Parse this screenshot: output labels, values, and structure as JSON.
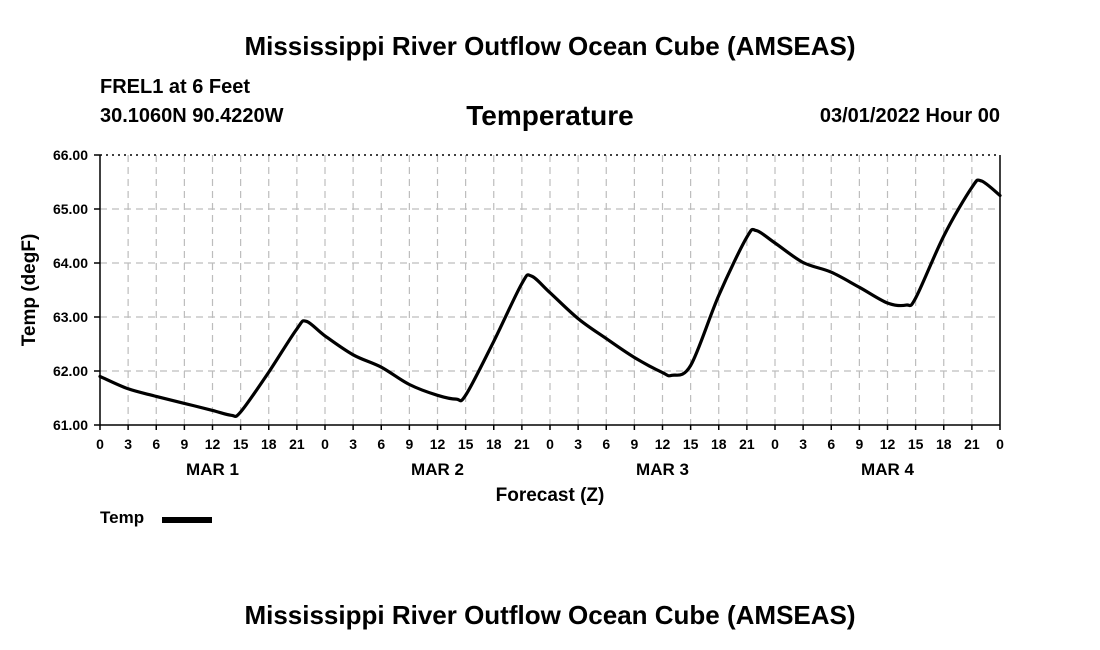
{
  "header": {
    "main_title": "Mississippi River Outflow Ocean Cube (AMSEAS)",
    "station": "FREL1 at 6 Feet",
    "coords": "30.1060N  90.4220W",
    "plot_title": "Temperature",
    "datetime": "03/01/2022 Hour 00"
  },
  "footer": {
    "title": "Mississippi River Outflow Ocean Cube (AMSEAS)"
  },
  "legend": {
    "label": "Temp",
    "color": "#000000"
  },
  "chart_data": {
    "type": "line",
    "title": "Temperature",
    "xlabel": "Forecast (Z)",
    "ylabel": "Temp (degF)",
    "ylim": [
      61,
      66
    ],
    "xlim": [
      0,
      96
    ],
    "x_ticks": [
      0,
      3,
      6,
      9,
      12,
      15,
      18,
      21,
      24,
      27,
      30,
      33,
      36,
      39,
      42,
      45,
      48,
      51,
      54,
      57,
      60,
      63,
      66,
      69,
      72,
      75,
      78,
      81,
      84,
      87,
      90,
      93,
      96
    ],
    "x_tick_labels": [
      "0",
      "3",
      "6",
      "9",
      "12",
      "15",
      "18",
      "21",
      "0",
      "3",
      "6",
      "9",
      "12",
      "15",
      "18",
      "21",
      "0",
      "3",
      "6",
      "9",
      "12",
      "15",
      "18",
      "21",
      "0",
      "3",
      "6",
      "9",
      "12",
      "15",
      "18",
      "21",
      "0"
    ],
    "y_ticks": [
      61,
      62,
      63,
      64,
      65,
      66
    ],
    "y_tick_labels": [
      "61.00",
      "62.00",
      "63.00",
      "64.00",
      "65.00",
      "66.00"
    ],
    "day_labels": [
      {
        "label": "MAR 1",
        "x": 12
      },
      {
        "label": "MAR 2",
        "x": 36
      },
      {
        "label": "MAR 3",
        "x": 60
      },
      {
        "label": "MAR 4",
        "x": 84
      }
    ],
    "grid": true,
    "series": [
      {
        "name": "Temp",
        "color": "#000000",
        "x": [
          0,
          3,
          6,
          9,
          12,
          14,
          15,
          18,
          21,
          22,
          24,
          27,
          30,
          33,
          36,
          38,
          39,
          42,
          45,
          46,
          48,
          51,
          54,
          57,
          60,
          61,
          63,
          66,
          69,
          70,
          72,
          75,
          78,
          81,
          84,
          86,
          87,
          90,
          93,
          94,
          96
        ],
        "y": [
          61.9,
          61.67,
          61.53,
          61.4,
          61.27,
          61.18,
          61.24,
          61.98,
          62.78,
          62.92,
          62.65,
          62.3,
          62.07,
          61.75,
          61.55,
          61.48,
          61.55,
          62.55,
          63.62,
          63.76,
          63.45,
          62.97,
          62.6,
          62.25,
          61.97,
          61.92,
          62.1,
          63.4,
          64.48,
          64.6,
          64.37,
          64.01,
          63.83,
          63.55,
          63.26,
          63.22,
          63.35,
          64.5,
          65.4,
          65.52,
          65.25
        ]
      }
    ]
  }
}
